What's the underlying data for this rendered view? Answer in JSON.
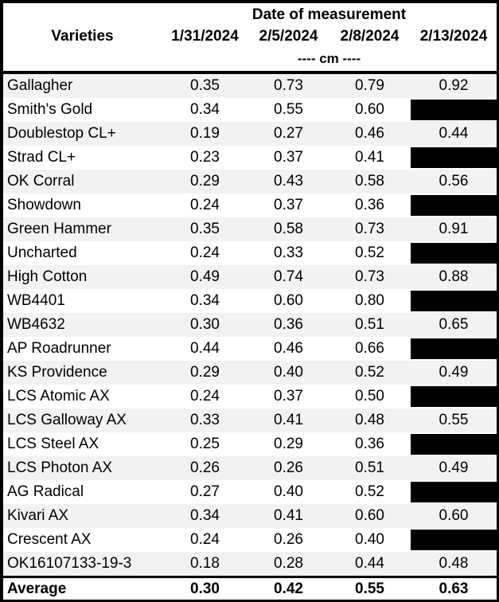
{
  "chart_data": {
    "type": "table",
    "title": "Date of measurement",
    "row_header": "Varieties",
    "columns": [
      "1/31/2024",
      "2/5/2024",
      "2/8/2024",
      "2/13/2024"
    ],
    "units_label": "---- cm ----",
    "units": "cm",
    "rows": [
      {
        "variety": "Gallagher",
        "values": [
          "0.35",
          "0.73",
          "0.79",
          "0.92"
        ]
      },
      {
        "variety": "Smith's Gold",
        "values": [
          "0.34",
          "0.55",
          "0.60",
          null
        ]
      },
      {
        "variety": "Doublestop CL+",
        "values": [
          "0.19",
          "0.27",
          "0.46",
          "0.44"
        ]
      },
      {
        "variety": "Strad CL+",
        "values": [
          "0.23",
          "0.37",
          "0.41",
          null
        ]
      },
      {
        "variety": "OK Corral",
        "values": [
          "0.29",
          "0.43",
          "0.58",
          "0.56"
        ]
      },
      {
        "variety": "Showdown",
        "values": [
          "0.24",
          "0.37",
          "0.36",
          null
        ]
      },
      {
        "variety": "Green Hammer",
        "values": [
          "0.35",
          "0.58",
          "0.73",
          "0.91"
        ]
      },
      {
        "variety": "Uncharted",
        "values": [
          "0.24",
          "0.33",
          "0.52",
          null
        ]
      },
      {
        "variety": "High Cotton",
        "values": [
          "0.49",
          "0.74",
          "0.73",
          "0.88"
        ]
      },
      {
        "variety": "WB4401",
        "values": [
          "0.34",
          "0.60",
          "0.80",
          null
        ]
      },
      {
        "variety": "WB4632",
        "values": [
          "0.30",
          "0.36",
          "0.51",
          "0.65"
        ]
      },
      {
        "variety": "AP Roadrunner",
        "values": [
          "0.44",
          "0.46",
          "0.66",
          null
        ]
      },
      {
        "variety": "KS Providence",
        "values": [
          "0.29",
          "0.40",
          "0.52",
          "0.49"
        ]
      },
      {
        "variety": "LCS Atomic AX",
        "values": [
          "0.24",
          "0.37",
          "0.50",
          null
        ]
      },
      {
        "variety": "LCS Galloway AX",
        "values": [
          "0.33",
          "0.41",
          "0.48",
          "0.55"
        ]
      },
      {
        "variety": "LCS Steel AX",
        "values": [
          "0.25",
          "0.29",
          "0.36",
          null
        ]
      },
      {
        "variety": "LCS Photon AX",
        "values": [
          "0.26",
          "0.26",
          "0.51",
          "0.49"
        ]
      },
      {
        "variety": "AG Radical",
        "values": [
          "0.27",
          "0.40",
          "0.52",
          null
        ]
      },
      {
        "variety": "Kivari AX",
        "values": [
          "0.34",
          "0.41",
          "0.60",
          "0.60"
        ]
      },
      {
        "variety": "Crescent AX",
        "values": [
          "0.24",
          "0.26",
          "0.40",
          null
        ]
      },
      {
        "variety": "OK16107133-19-3",
        "values": [
          "0.18",
          "0.28",
          "0.44",
          "0.48"
        ]
      }
    ],
    "average": {
      "label": "Average",
      "values": [
        "0.30",
        "0.42",
        "0.55",
        "0.63"
      ]
    }
  },
  "colors": {
    "band": "#F2F2F2",
    "background": "#FFFFFF",
    "border": "#000000",
    "redaction": "#000000",
    "text": "#000000"
  }
}
